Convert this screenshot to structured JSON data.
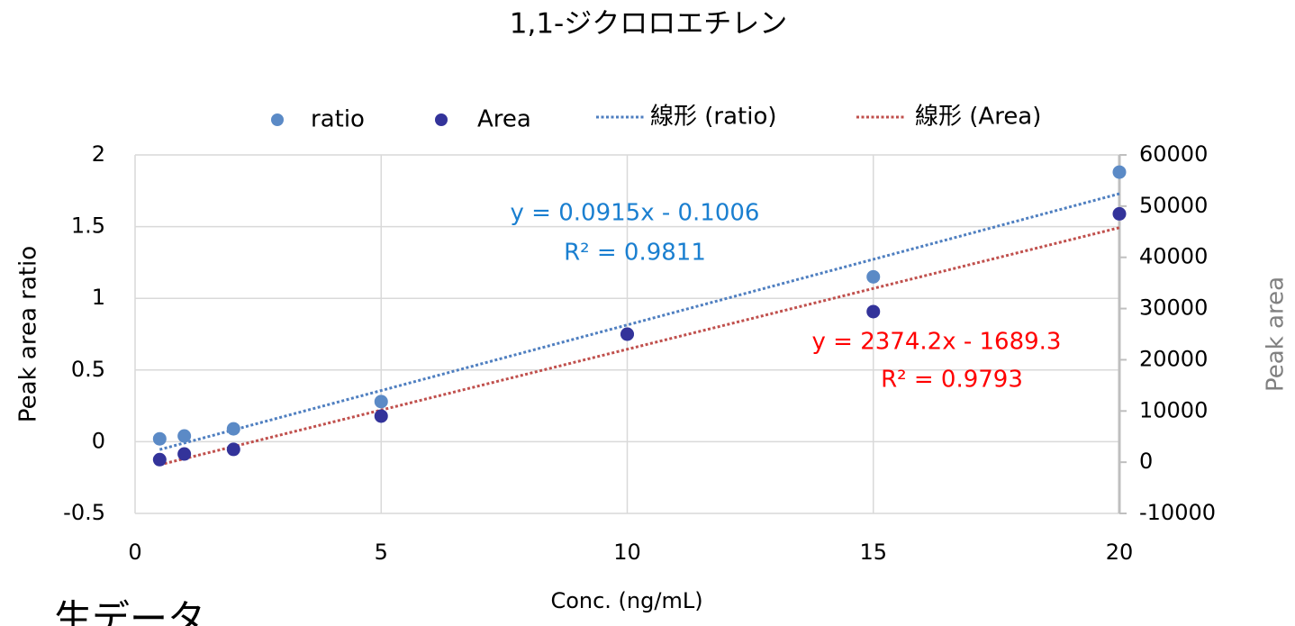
{
  "chart_data": {
    "type": "scatter",
    "title": "1,1-ジクロロエチレン",
    "xlabel": "Conc. (ng/mL)",
    "ylabel": "Peak area ratio",
    "y2label": "Peak area",
    "x": [
      0.5,
      1,
      2,
      5,
      10,
      15,
      20
    ],
    "series": [
      {
        "name": "ratio",
        "color": "#5b8ac6",
        "values": [
          0.02,
          0.04,
          0.09,
          0.28,
          0.75,
          1.15,
          1.88
        ]
      },
      {
        "name": "Area",
        "color": "#33339a",
        "axis": "y2",
        "values": [
          500,
          1600,
          2500,
          9000,
          25000,
          29400,
          48500
        ]
      }
    ],
    "trendlines": [
      {
        "name": "線形 (ratio)",
        "color": "#4f7fc0",
        "slope": 0.0915,
        "intercept": -0.1006,
        "equation": "y = 0.0915x - 0.1006",
        "r2": "R² = 0.9811",
        "label_color": "#1a7fd0"
      },
      {
        "name": "線形 (Area)",
        "color": "#c0504d",
        "axis": "y2",
        "slope": 2374.2,
        "intercept": -1689.3,
        "equation": "y = 2374.2x - 1689.3",
        "r2": "R² = 0.9793",
        "label_color": "#ff0000"
      }
    ],
    "xlim": [
      0,
      20
    ],
    "xticks": [
      0,
      5,
      10,
      15,
      20
    ],
    "ylim": [
      -0.5,
      2
    ],
    "yticks": [
      -0.5,
      0,
      0.5,
      1,
      1.5,
      2
    ],
    "y2lim": [
      -10000,
      60000
    ],
    "y2ticks": [
      -10000,
      0,
      10000,
      20000,
      30000,
      40000,
      50000,
      60000
    ],
    "grid": true,
    "legend": "top",
    "footer": "生データ"
  }
}
